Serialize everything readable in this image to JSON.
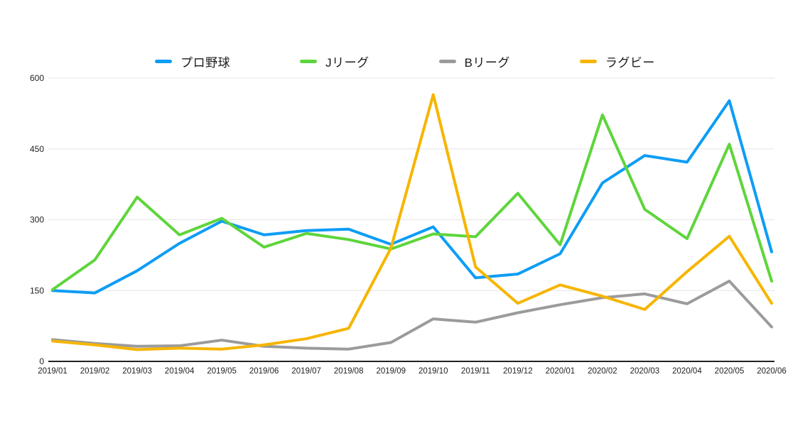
{
  "chart_data": {
    "type": "line",
    "title": "",
    "xlabel": "",
    "ylabel": "",
    "categories": [
      "2019/01",
      "2019/02",
      "2019/03",
      "2019/04",
      "2019/05",
      "2019/06",
      "2019/07",
      "2019/08",
      "2019/09",
      "2019/10",
      "2019/11",
      "2019/12",
      "2020/01",
      "2020/02",
      "2020/03",
      "2020/04",
      "2020/05",
      "2020/06"
    ],
    "series": [
      {
        "name": "プロ野球",
        "color": "#0d9df5",
        "values": [
          150,
          145,
          192,
          250,
          297,
          268,
          277,
          280,
          248,
          285,
          177,
          185,
          228,
          378,
          436,
          422,
          552,
          232
        ]
      },
      {
        "name": "Jリーグ",
        "color": "#5ed53c",
        "values": [
          152,
          215,
          348,
          268,
          303,
          242,
          271,
          258,
          238,
          270,
          264,
          356,
          247,
          522,
          322,
          260,
          460,
          170
        ]
      },
      {
        "name": "Bリーグ",
        "color": "#9b9b9b",
        "values": [
          46,
          38,
          32,
          33,
          45,
          32,
          28,
          26,
          40,
          90,
          83,
          103,
          120,
          135,
          143,
          122,
          170,
          73
        ]
      },
      {
        "name": "ラグビー",
        "color": "#f6b500",
        "values": [
          43,
          35,
          25,
          28,
          26,
          35,
          48,
          70,
          240,
          565,
          200,
          123,
          162,
          138,
          110,
          190,
          265,
          123
        ]
      }
    ],
    "ylim": [
      0,
      600
    ],
    "yticks": [
      0,
      150,
      300,
      450,
      600
    ],
    "grid": true,
    "legend_position": "top",
    "axis_color": "#222222",
    "grid_color": "#e6e6e6"
  }
}
